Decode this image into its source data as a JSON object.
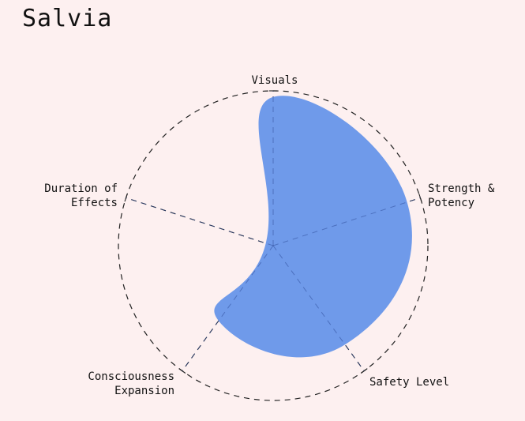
{
  "page": {
    "title": "Salvia"
  },
  "chart_data": {
    "type": "radar",
    "title": "Salvia",
    "axes": [
      {
        "label": [
          "Visuals"
        ],
        "value": 0.96
      },
      {
        "label": [
          "Strength &",
          "Potency"
        ],
        "value": 0.91
      },
      {
        "label": [
          "Safety Level"
        ],
        "value": 0.79
      },
      {
        "label": [
          "Consciousness",
          "Expansion"
        ],
        "value": 0.6
      },
      {
        "label": [
          "Duration of",
          "Effects"
        ],
        "value": 0.05
      }
    ],
    "range": [
      0,
      1
    ],
    "shape": "smoothed",
    "grid": "dashed outer circle and dashed spokes",
    "colors": {
      "fill": "#6f9aea",
      "grid": "#222222",
      "background": "#fdf0f0"
    }
  }
}
